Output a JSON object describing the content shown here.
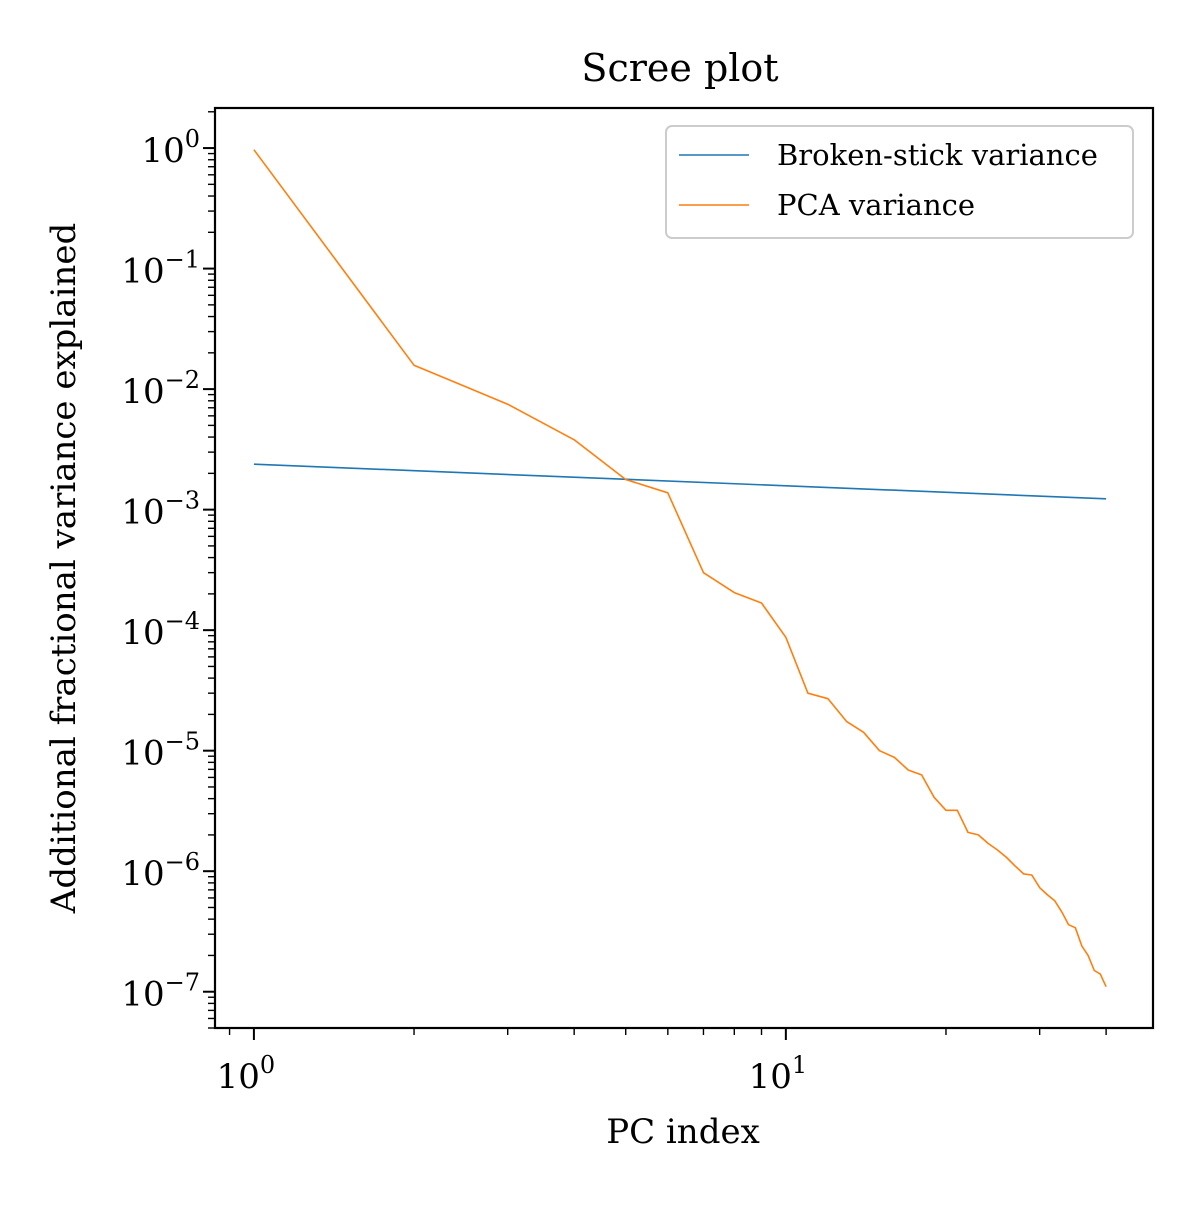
{
  "chart_data": {
    "type": "line",
    "title": "Scree plot",
    "xlabel": "PC index",
    "ylabel": "Additional fractional variance explained",
    "xscale": "log",
    "yscale": "log",
    "xlim": [
      0.845,
      49.0
    ],
    "ylim": [
      5e-08,
      2.15
    ],
    "x_ticks": [
      {
        "value": 1,
        "base": "10",
        "exp": "0"
      },
      {
        "value": 10,
        "base": "10",
        "exp": "1"
      }
    ],
    "y_ticks": [
      {
        "value": 1,
        "base": "10",
        "exp": "0"
      },
      {
        "value": 0.1,
        "base": "10",
        "exp": "−1"
      },
      {
        "value": 0.01,
        "base": "10",
        "exp": "−2"
      },
      {
        "value": 0.001,
        "base": "10",
        "exp": "−3"
      },
      {
        "value": 0.0001,
        "base": "10",
        "exp": "−4"
      },
      {
        "value": 1e-05,
        "base": "10",
        "exp": "−5"
      },
      {
        "value": 1e-06,
        "base": "10",
        "exp": "−6"
      },
      {
        "value": 1e-07,
        "base": "10",
        "exp": "−7"
      }
    ],
    "grid": false,
    "legend_position": "top-right",
    "series": [
      {
        "name": "Broken-stick variance",
        "color": "#1f77b4",
        "x": [
          1,
          40
        ],
        "y": [
          0.00238,
          0.00123
        ]
      },
      {
        "name": "PCA variance",
        "color": "#ff7f0e",
        "x": [
          1,
          2,
          3,
          4,
          5,
          6,
          7,
          8,
          9,
          10,
          11,
          12,
          13,
          14,
          15,
          16,
          17,
          18,
          19,
          20,
          21,
          22,
          23,
          24,
          25,
          26,
          27,
          28,
          29,
          30,
          31,
          32,
          33,
          34,
          35,
          36,
          37,
          38,
          39,
          40
        ],
        "y": [
          0.97,
          0.0158,
          0.0075,
          0.0038,
          0.00178,
          0.00138,
          0.0003,
          0.000205,
          0.000168,
          8.7e-05,
          3e-05,
          2.7e-05,
          1.75e-05,
          1.42e-05,
          1e-05,
          8.8e-06,
          6.9e-06,
          6.3e-06,
          4.1e-06,
          3.2e-06,
          3.2e-06,
          2.1e-06,
          2e-06,
          1.7e-06,
          1.5e-06,
          1.3e-06,
          1.1e-06,
          9.5e-07,
          9.3e-07,
          7.3e-07,
          6.4e-07,
          5.7e-07,
          4.6e-07,
          3.6e-07,
          3.4e-07,
          2.4e-07,
          2e-07,
          1.5e-07,
          1.4e-07,
          1.1e-07
        ]
      }
    ]
  }
}
